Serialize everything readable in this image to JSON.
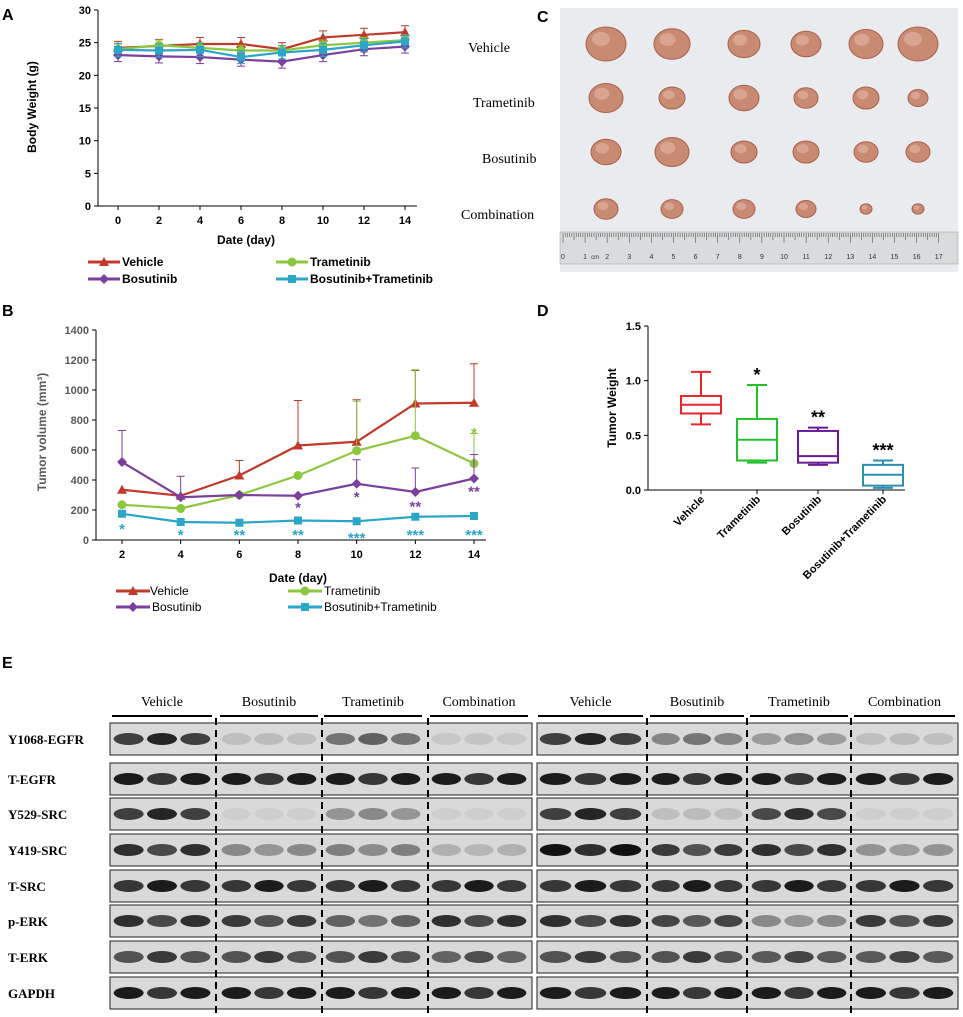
{
  "colors": {
    "vehicle": "#c0392b",
    "trametinib": "#8dc63f",
    "bosutinib": "#7b3f9e",
    "combination": "#2ba6c7",
    "box_vehicle": "#e8262a",
    "box_trametinib": "#22c02a",
    "box_bosutinib": "#6a1b9a",
    "box_combination": "#2a8fb0"
  },
  "panels": {
    "A": "A",
    "B": "B",
    "C": "C",
    "D": "D",
    "E": "E"
  },
  "chart_data": [
    {
      "id": "A",
      "type": "line",
      "xlabel": "Date (day)",
      "ylabel": "Body Weight (g)",
      "ylim": [
        0,
        30
      ],
      "yticks": [
        0,
        5,
        10,
        15,
        20,
        25,
        30
      ],
      "x": [
        0,
        2,
        4,
        6,
        8,
        10,
        12,
        14
      ],
      "series": [
        {
          "name": "Vehicle",
          "color": "#c0392b",
          "marker": "triangle",
          "values": [
            24.2,
            24.5,
            24.8,
            24.8,
            24.0,
            25.8,
            26.2,
            26.6
          ],
          "err": [
            1.0,
            1.0,
            1.0,
            1.0,
            1.0,
            1.0,
            1.0,
            1.0
          ]
        },
        {
          "name": "Trametinib",
          "color": "#8dc63f",
          "marker": "circle",
          "values": [
            24.0,
            24.6,
            24.2,
            23.8,
            23.8,
            24.6,
            25.0,
            25.4
          ],
          "err": [
            0.8,
            0.8,
            0.8,
            0.8,
            0.8,
            0.8,
            0.8,
            0.8
          ]
        },
        {
          "name": "Bosutinib",
          "color": "#7b3f9e",
          "marker": "diamond",
          "values": [
            23.1,
            22.9,
            22.8,
            22.4,
            22.1,
            23.1,
            24.0,
            24.4
          ],
          "err": [
            1.0,
            1.0,
            1.0,
            1.0,
            1.0,
            1.0,
            1.0,
            1.0
          ]
        },
        {
          "name": "Bosutinib+Trametinib",
          "color": "#2ba6c7",
          "marker": "square",
          "values": [
            23.9,
            23.8,
            23.9,
            22.8,
            23.5,
            23.9,
            24.6,
            25.2
          ],
          "err": [
            1.0,
            1.0,
            1.0,
            1.0,
            1.0,
            1.0,
            1.0,
            1.0
          ]
        }
      ]
    },
    {
      "id": "B",
      "type": "line",
      "xlabel": "Date (day)",
      "ylabel": "Tumor volume (mm³)",
      "ylim": [
        0,
        1400
      ],
      "yticks": [
        0,
        200,
        400,
        600,
        800,
        1000,
        1200,
        1400
      ],
      "x": [
        2,
        4,
        6,
        8,
        10,
        12,
        14
      ],
      "series": [
        {
          "name": "Vehicle",
          "color": "#c0392b",
          "marker": "triangle",
          "values": [
            335,
            295,
            430,
            630,
            655,
            910,
            915
          ],
          "err": [
            0,
            0,
            100,
            300,
            280,
            220,
            260
          ]
        },
        {
          "name": "Trametinib",
          "color": "#8dc63f",
          "marker": "circle",
          "values": [
            235,
            210,
            300,
            430,
            595,
            695,
            510
          ],
          "err": [
            0,
            0,
            0,
            0,
            330,
            440,
            200
          ]
        },
        {
          "name": "Bosutinib",
          "color": "#7b3f9e",
          "marker": "diamond",
          "values": [
            520,
            285,
            300,
            295,
            375,
            320,
            410
          ],
          "err": [
            210,
            140,
            0,
            0,
            160,
            160,
            160
          ]
        },
        {
          "name": "Bosutinib+Trametinib",
          "color": "#2ba6c7",
          "marker": "square",
          "values": [
            175,
            120,
            115,
            130,
            125,
            155,
            160
          ],
          "err": [
            0,
            0,
            0,
            0,
            0,
            0,
            0
          ]
        }
      ],
      "annotations": [
        {
          "x": 8,
          "y": 225,
          "text": "*",
          "color": "#7b3f9e"
        },
        {
          "x": 10,
          "y": 295,
          "text": "*",
          "color": "#7b3f9e"
        },
        {
          "x": 12,
          "y": 230,
          "text": "**",
          "color": "#7b3f9e"
        },
        {
          "x": 14,
          "y": 330,
          "text": "**",
          "color": "#7b3f9e"
        },
        {
          "x": 14,
          "y": 720,
          "text": "*",
          "color": "#8dc63f"
        },
        {
          "x": 2,
          "y": 80,
          "text": "*",
          "color": "#2ba6c7"
        },
        {
          "x": 4,
          "y": 40,
          "text": "*",
          "color": "#2ba6c7"
        },
        {
          "x": 6,
          "y": 40,
          "text": "**",
          "color": "#2ba6c7"
        },
        {
          "x": 8,
          "y": 40,
          "text": "**",
          "color": "#2ba6c7"
        },
        {
          "x": 10,
          "y": 20,
          "text": "***",
          "color": "#2ba6c7"
        },
        {
          "x": 12,
          "y": 40,
          "text": "***",
          "color": "#2ba6c7"
        },
        {
          "x": 14,
          "y": 40,
          "text": "***",
          "color": "#2ba6c7"
        }
      ]
    },
    {
      "id": "D",
      "type": "box",
      "ylabel": "Tumor Weight",
      "ylim": [
        0,
        1.5
      ],
      "yticks": [
        0.0,
        0.5,
        1.0,
        1.5
      ],
      "ytick_labels": [
        "0.0",
        "0.5",
        "1.0",
        "1.5"
      ],
      "categories": [
        "Vehicle",
        "Trametinib",
        "Bosutinib",
        "Bosutinib+Trametinib"
      ],
      "boxes": [
        {
          "name": "Vehicle",
          "min": 0.6,
          "q1": 0.7,
          "median": 0.78,
          "q3": 0.86,
          "max": 1.08,
          "sig": ""
        },
        {
          "name": "Trametinib",
          "min": 0.25,
          "q1": 0.27,
          "median": 0.46,
          "q3": 0.65,
          "max": 0.96,
          "sig": "*"
        },
        {
          "name": "Bosutinib",
          "min": 0.23,
          "q1": 0.25,
          "median": 0.31,
          "q3": 0.54,
          "max": 0.57,
          "sig": "**"
        },
        {
          "name": "Bosutinib+Trametinib",
          "min": 0.02,
          "q1": 0.04,
          "median": 0.14,
          "q3": 0.23,
          "max": 0.27,
          "sig": "***"
        }
      ]
    }
  ],
  "legend_labels": {
    "vehicle": "Vehicle",
    "trametinib": "Trametinib",
    "bosutinib": "Bosutinib",
    "combination": "Bosutinib+Trametinib"
  },
  "photo": {
    "rows": [
      "Vehicle",
      "Trametinib",
      "Bosutinib",
      "Combination"
    ],
    "counts": [
      6,
      6,
      6,
      6
    ],
    "ruler_label": "cm",
    "ruler_numbers": [
      "0",
      "1",
      "2",
      "3",
      "4",
      "5",
      "6",
      "7",
      "8",
      "9",
      "10",
      "11",
      "12",
      "13",
      "14",
      "15",
      "16",
      "17"
    ]
  },
  "blot": {
    "group_labels": [
      "Vehicle",
      "Bosutinib",
      "Trametinib",
      "Combination",
      "Vehicle",
      "Bosutinib",
      "Trametinib",
      "Combination"
    ],
    "rows": [
      "Y1068-EGFR",
      "T-EGFR",
      "Y529-SRC",
      "Y419-SRC",
      "T-SRC",
      "p-ERK",
      "T-ERK",
      "GAPDH"
    ],
    "intensity": [
      [
        0.9,
        0.15,
        0.6,
        0.1,
        0.9,
        0.5,
        0.35,
        0.15
      ],
      [
        0.95,
        0.95,
        0.95,
        0.95,
        0.95,
        0.95,
        0.95,
        0.95
      ],
      [
        0.9,
        0.05,
        0.4,
        0.02,
        0.9,
        0.15,
        0.85,
        0.02
      ],
      [
        0.85,
        0.4,
        0.45,
        0.2,
        1.0,
        0.8,
        0.85,
        0.35
      ],
      [
        0.95,
        0.95,
        0.95,
        0.95,
        0.95,
        0.95,
        0.95,
        0.95
      ],
      [
        0.85,
        0.8,
        0.6,
        0.85,
        0.85,
        0.75,
        0.4,
        0.8
      ],
      [
        0.8,
        0.8,
        0.8,
        0.7,
        0.8,
        0.8,
        0.75,
        0.75
      ],
      [
        0.95,
        0.95,
        0.95,
        0.95,
        0.95,
        0.95,
        0.95,
        0.95
      ]
    ]
  }
}
